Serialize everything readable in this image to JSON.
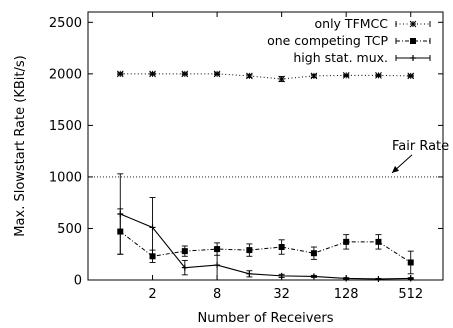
{
  "chart_data": {
    "type": "line",
    "xlabel": "Number of Receivers",
    "ylabel": "Max. Slowstart Rate (KBit/s)",
    "x_scale": "log2",
    "xlim": [
      0.5,
      1024
    ],
    "ylim": [
      0,
      2600
    ],
    "x_ticks": [
      2,
      8,
      32,
      128,
      512
    ],
    "y_ticks": [
      0,
      500,
      1000,
      1500,
      2000,
      2500
    ],
    "legend_position": "top-right",
    "grid": false,
    "series": [
      {
        "name": "only TFMCC",
        "color": "#000000",
        "dash": "dotted",
        "marker": "asterisk",
        "x": [
          1,
          2,
          4,
          8,
          16,
          32,
          64,
          128,
          256,
          512
        ],
        "y": [
          2000,
          2000,
          2000,
          2000,
          1980,
          1950,
          1980,
          1985,
          1985,
          1980
        ],
        "err": [
          10,
          10,
          10,
          10,
          15,
          25,
          15,
          10,
          10,
          10
        ]
      },
      {
        "name": "one competing TCP",
        "color": "#000000",
        "dash": "dashdot",
        "marker": "square",
        "x": [
          1,
          2,
          4,
          8,
          16,
          32,
          64,
          128,
          256,
          512
        ],
        "y": [
          470,
          230,
          280,
          300,
          290,
          320,
          260,
          370,
          370,
          170
        ],
        "err": [
          220,
          60,
          50,
          60,
          60,
          70,
          60,
          70,
          70,
          110
        ]
      },
      {
        "name": "high stat. mux.",
        "color": "#000000",
        "dash": "solid",
        "marker": "plus",
        "x": [
          1,
          2,
          4,
          8,
          16,
          32,
          64,
          128,
          256,
          512
        ],
        "y": [
          640,
          510,
          120,
          145,
          60,
          40,
          35,
          15,
          10,
          15
        ],
        "err": [
          390,
          290,
          70,
          150,
          30,
          15,
          10,
          8,
          5,
          8
        ]
      }
    ],
    "annotations": [
      {
        "text": "Fair Rate",
        "y_line": 1000
      }
    ]
  }
}
